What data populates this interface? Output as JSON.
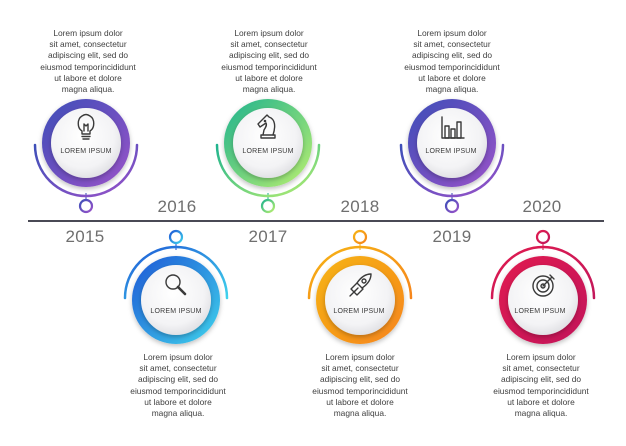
{
  "milestones": [
    {
      "year": "2015",
      "label": "LOREM IPSUM",
      "icon": "lightbulb-icon",
      "colors": [
        "#3d4fb8",
        "#9a52c9"
      ],
      "text": "Lorem ipsum dolor\nsit amet, consectetur\nadipiscing elit, sed do\neiusmod temporincididunt\nut labore et dolore\nmagna aliqua."
    },
    {
      "year": "2016",
      "label": "LOREM IPSUM",
      "icon": "magnifier-icon",
      "colors": [
        "#1e57d6",
        "#3fd3ec"
      ],
      "text": "Lorem ipsum dolor\nsit amet, consectetur\nadipiscing elit, sed do\neiusmod temporincididunt\nut labore et dolore\nmagna aliqua."
    },
    {
      "year": "2017",
      "label": "LOREM IPSUM",
      "icon": "chess-knight-icon",
      "colors": [
        "#1fb38e",
        "#b9ef70"
      ],
      "text": "Lorem ipsum dolor\nsit amet, consectetur\nadipiscing elit, sed do\neiusmod temporincididunt\nut labore et dolore\nmagna aliqua."
    },
    {
      "year": "2018",
      "label": "LOREM IPSUM",
      "icon": "rocket-icon",
      "colors": [
        "#f6b414",
        "#f6851c"
      ],
      "text": "Lorem ipsum dolor\nsit amet, consectetur\nadipiscing elit, sed do\neiusmod temporincididunt\nut labore et dolore\nmagna aliqua."
    },
    {
      "year": "2019",
      "label": "LOREM IPSUM",
      "icon": "bar-chart-icon",
      "colors": [
        "#3d4fb8",
        "#9a52c9"
      ],
      "text": "Lorem ipsum dolor\nsit amet, consectetur\nadipiscing elit, sed do\neiusmod temporincididunt\nut labore et dolore\nmagna aliqua."
    },
    {
      "year": "2020",
      "label": "LOREM IPSUM",
      "icon": "target-icon",
      "colors": [
        "#e01a4f",
        "#c2185b"
      ],
      "text": "Lorem ipsum dolor\nsit amet, consectetur\nadipiscing elit, sed do\neiusmod temporincididunt\nut labore et dolore\nmagna aliqua."
    }
  ],
  "colors": {
    "axis": "#4a4a55",
    "year_text": "#6f6f6f",
    "body_text": "#3f3f3f"
  }
}
